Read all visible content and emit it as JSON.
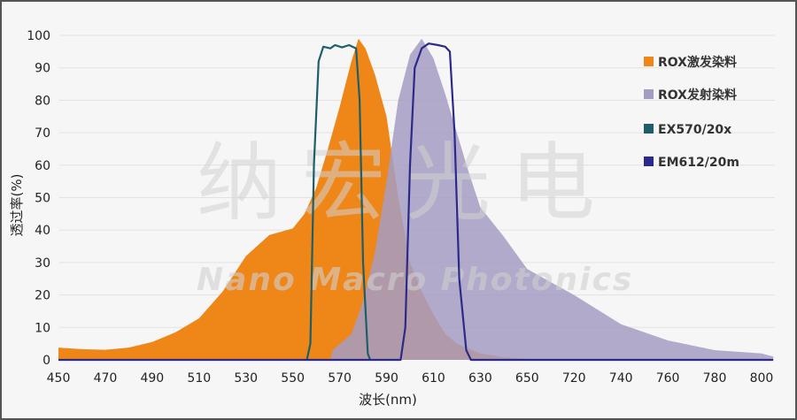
{
  "chart_data": {
    "type": "area",
    "title": "",
    "xlabel": "波长(nm)",
    "ylabel": "透过率(%)",
    "x_ticks": [
      450,
      470,
      490,
      510,
      530,
      550,
      570,
      590,
      610,
      630,
      650,
      720,
      740,
      760,
      780,
      800
    ],
    "y_ticks": [
      0,
      10,
      20,
      30,
      40,
      50,
      60,
      70,
      80,
      90,
      100
    ],
    "ylim": [
      0,
      100
    ],
    "xlim": [
      450,
      805
    ],
    "grid": true,
    "legend_position": "right",
    "series": [
      {
        "name": "ROX激发染料",
        "kind": "area",
        "color": "#ef8618",
        "points": [
          [
            450,
            3.8
          ],
          [
            460,
            3.3
          ],
          [
            470,
            3.1
          ],
          [
            480,
            3.8
          ],
          [
            490,
            5.5
          ],
          [
            500,
            8.5
          ],
          [
            510,
            12.8
          ],
          [
            520,
            21
          ],
          [
            530,
            32
          ],
          [
            540,
            38.5
          ],
          [
            550,
            40.5
          ],
          [
            555,
            45
          ],
          [
            560,
            53
          ],
          [
            565,
            65
          ],
          [
            570,
            78
          ],
          [
            575,
            92
          ],
          [
            578,
            99
          ],
          [
            581,
            96
          ],
          [
            585,
            88
          ],
          [
            590,
            75
          ],
          [
            595,
            50
          ],
          [
            600,
            30
          ],
          [
            605,
            21
          ],
          [
            610,
            14
          ],
          [
            615,
            8
          ],
          [
            620,
            5
          ],
          [
            630,
            2
          ],
          [
            640,
            0.8
          ],
          [
            650,
            0.3
          ],
          [
            720,
            0
          ]
        ]
      },
      {
        "name": "ROX发射染料",
        "kind": "area",
        "color": "#a49cc2",
        "points": [
          [
            566,
            0
          ],
          [
            567,
            3
          ],
          [
            575,
            8
          ],
          [
            580,
            18
          ],
          [
            585,
            33
          ],
          [
            590,
            55
          ],
          [
            595,
            80
          ],
          [
            600,
            94
          ],
          [
            605,
            99
          ],
          [
            610,
            93
          ],
          [
            615,
            82
          ],
          [
            620,
            70
          ],
          [
            625,
            58
          ],
          [
            630,
            47
          ],
          [
            640,
            38
          ],
          [
            650,
            28
          ],
          [
            720,
            20
          ],
          [
            740,
            11
          ],
          [
            760,
            6
          ],
          [
            780,
            3
          ],
          [
            800,
            2
          ],
          [
            805,
            1
          ]
        ]
      },
      {
        "name": "EX570/20x",
        "kind": "line",
        "color": "#1c5f6a",
        "points": [
          [
            556,
            0
          ],
          [
            557.5,
            5
          ],
          [
            559,
            60
          ],
          [
            561,
            92
          ],
          [
            563,
            96.5
          ],
          [
            566,
            96
          ],
          [
            568,
            97
          ],
          [
            571,
            96.3
          ],
          [
            574,
            97
          ],
          [
            577,
            96
          ],
          [
            578.5,
            80
          ],
          [
            580,
            30
          ],
          [
            582,
            2
          ],
          [
            583,
            0
          ]
        ]
      },
      {
        "name": "EM612/20m",
        "kind": "line",
        "color": "#2b2a8a",
        "points": [
          [
            450,
            0
          ],
          [
            596,
            0
          ],
          [
            598,
            10
          ],
          [
            600,
            60
          ],
          [
            602,
            90
          ],
          [
            605,
            96
          ],
          [
            608,
            97.5
          ],
          [
            612,
            97
          ],
          [
            615,
            96.5
          ],
          [
            617,
            95
          ],
          [
            619,
            70
          ],
          [
            621,
            25
          ],
          [
            624,
            3
          ],
          [
            626,
            0
          ],
          [
            805,
            0
          ]
        ]
      }
    ]
  },
  "watermark": {
    "cn": "纳宏光电",
    "en": "Nano Macro Photonics"
  }
}
